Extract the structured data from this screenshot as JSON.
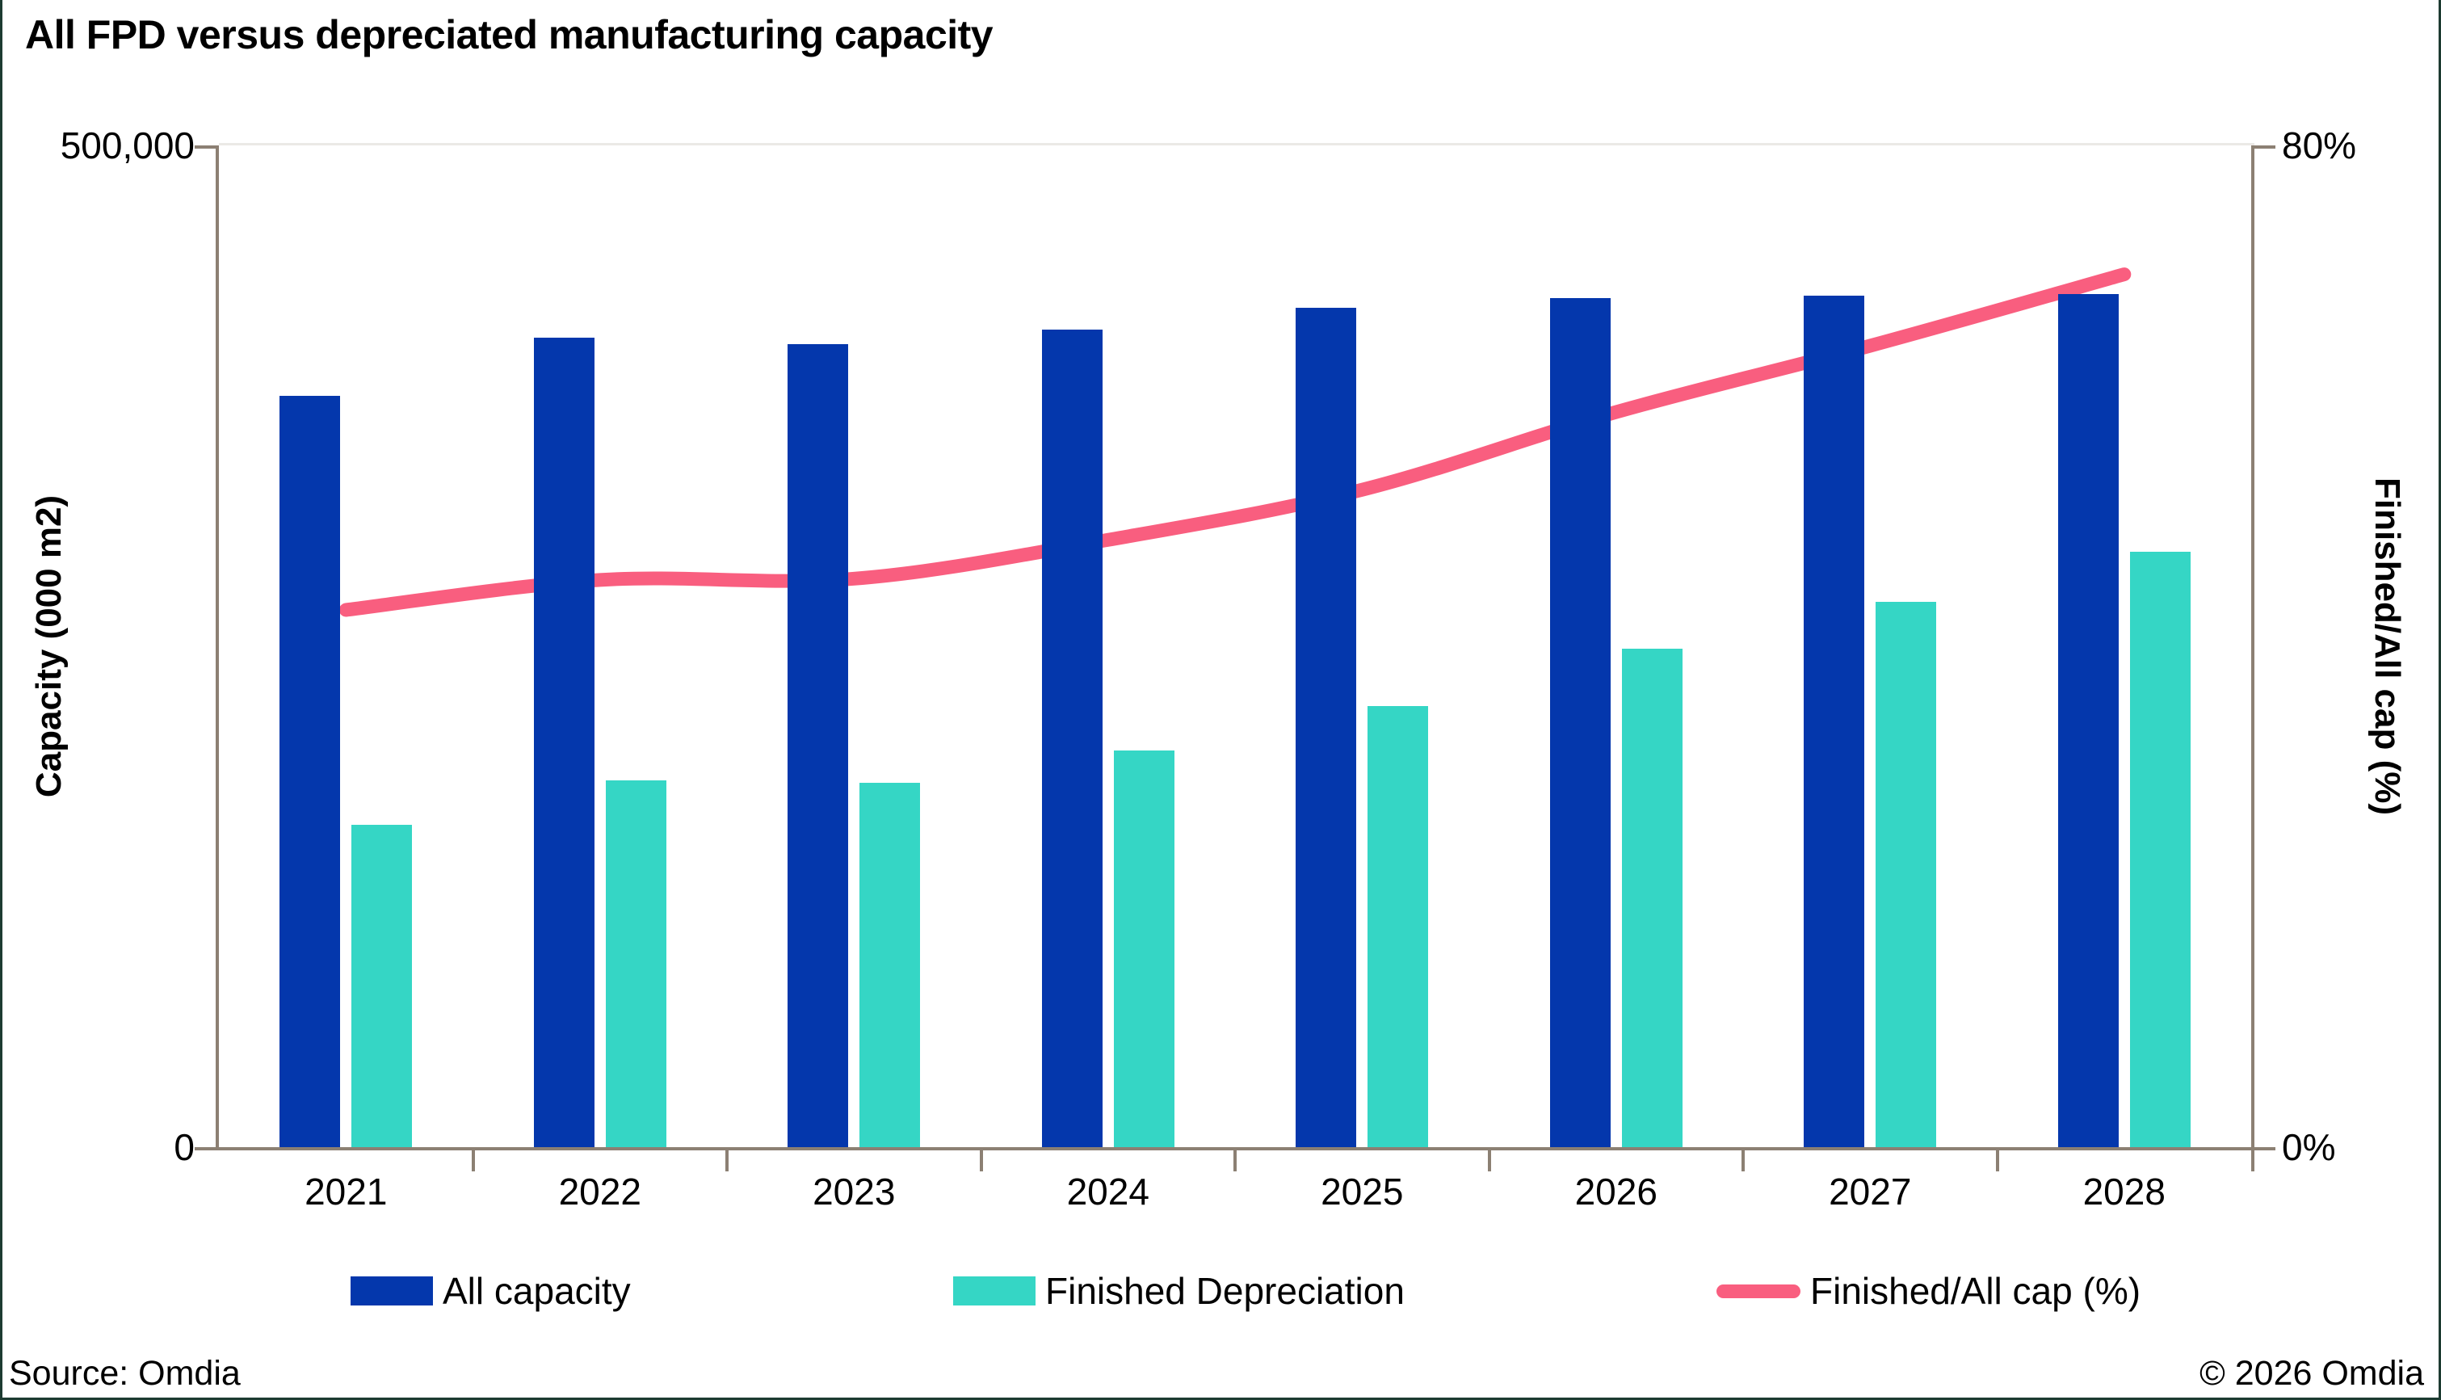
{
  "title": "All FPD versus depreciated manufacturing capacity",
  "footer": {
    "source": "Source: Omdia",
    "copyright": "© 2026 Omdia"
  },
  "colors": {
    "all_capacity": "#0437ac",
    "finished_depreciation": "#35d6c5",
    "line": "#f95e7f",
    "axis": "#8c8073",
    "gridline": "#ebe9e6"
  },
  "chart_data": {
    "type": "bar+line combo",
    "title": "All FPD versus depreciated manufacturing capacity",
    "categories": [
      "2021",
      "2022",
      "2023",
      "2024",
      "2025",
      "2026",
      "2027",
      "2028"
    ],
    "series": [
      {
        "name": "All capacity",
        "type": "bar",
        "axis": "left",
        "color": "#0437ac",
        "values": [
          375000,
          404000,
          401000,
          408000,
          419000,
          424000,
          425000,
          426000
        ]
      },
      {
        "name": "Finished Depreciation",
        "type": "bar",
        "axis": "left",
        "color": "#35d6c5",
        "values": [
          161000,
          183000,
          182000,
          198000,
          220000,
          249000,
          272000,
          297000
        ]
      },
      {
        "name": "Finished/All cap (%)",
        "type": "line",
        "axis": "right",
        "color": "#f95e7f",
        "values": [
          42.9,
          45.3,
          45.4,
          48.5,
          52.5,
          58.7,
          64.0,
          69.7
        ]
      }
    ],
    "left_axis": {
      "label": "Capacity (000 m2)",
      "min": 0,
      "max": 500000,
      "tick_top": "500,000",
      "tick_bottom": "0"
    },
    "right_axis": {
      "label": "Finished/All cap (%)",
      "min": 0,
      "max": 80,
      "tick_top": "80%",
      "tick_bottom": "0%"
    },
    "legend_position": "bottom",
    "grid": "top boundary line only"
  }
}
